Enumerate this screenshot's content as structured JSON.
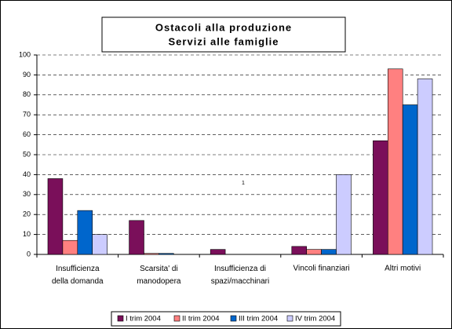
{
  "chart_data": {
    "type": "bar",
    "title": [
      "Ostacoli alla produzione",
      "Servizi alle famiglie"
    ],
    "annotation": "1",
    "categories": [
      "Insufficienza\ndella domanda",
      "Scarsita' di\nmanodopera",
      "Insufficienza di\nspazi/macchinari",
      "Vincoli finanziari",
      "Altri motivi"
    ],
    "series": [
      {
        "name": "I trim 2004",
        "color": "#7a0f5a",
        "values": [
          38,
          17,
          2.5,
          4,
          57
        ]
      },
      {
        "name": "II trim 2004",
        "color": "#ff8080",
        "values": [
          7,
          0.5,
          0,
          2.5,
          93
        ]
      },
      {
        "name": "III trim 2004",
        "color": "#0066cc",
        "values": [
          22,
          0.5,
          0,
          2.5,
          75
        ]
      },
      {
        "name": "IV trim 2004",
        "color": "#ccccff",
        "values": [
          10,
          0,
          0,
          40,
          88
        ]
      }
    ],
    "ylim": [
      0,
      100
    ],
    "yticks": [
      0,
      10,
      20,
      30,
      40,
      50,
      60,
      70,
      80,
      90,
      100
    ],
    "grid": true
  }
}
